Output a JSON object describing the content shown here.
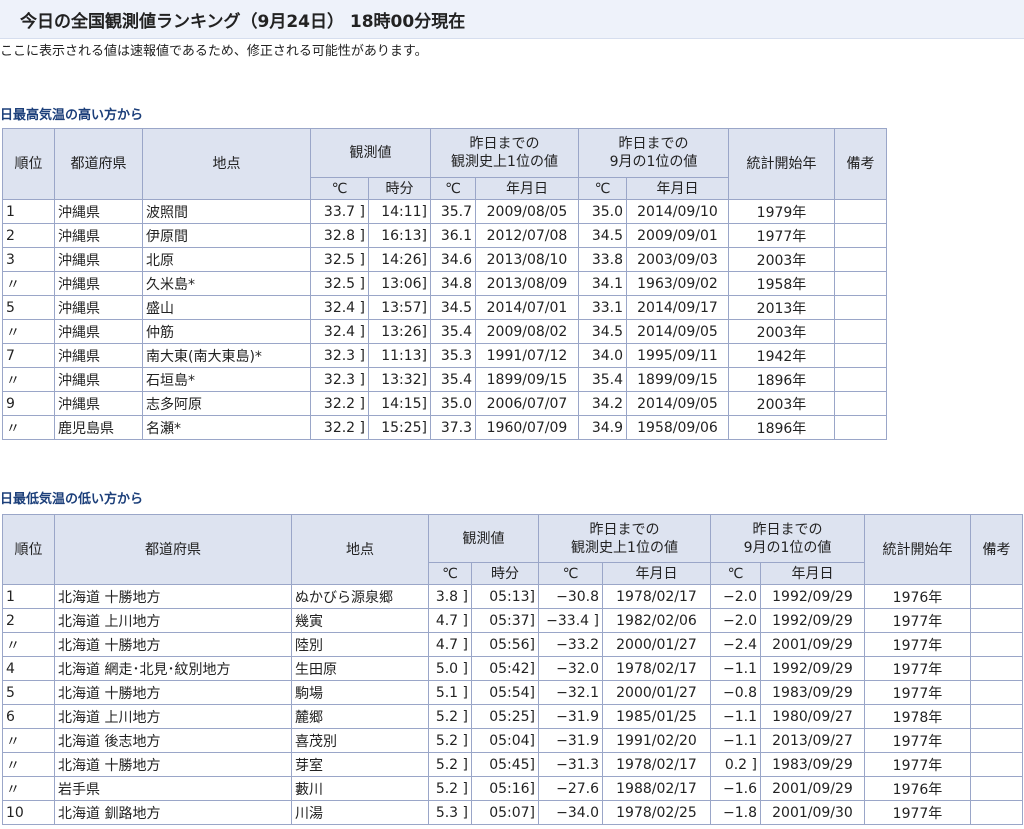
{
  "page": {
    "title": "今日の全国観測値ランキング（9月24日） 18時00分現在",
    "notice": "ここに表示される値は速報値であるため、修正される可能性があります。"
  },
  "header_labels": {
    "rank": "順位",
    "pref": "都道府県",
    "station": "地点",
    "observed": "観測値",
    "record_line1": "昨日までの",
    "record_line2": "観測史上1位の値",
    "sept_line1": "昨日までの",
    "sept_line2": "9月の1位の値",
    "start_year": "統計開始年",
    "remarks": "備考",
    "deg": "℃",
    "time": "時分",
    "date": "年月日"
  },
  "high_table": {
    "title": "日最高気温の高い方から",
    "rows": [
      {
        "rank": "1",
        "pref": "沖縄県",
        "station": "波照間",
        "value": "33.7 ]",
        "time": "14:11]",
        "rec_val": "35.7",
        "rec_date": "2009/08/05",
        "sep_val": "35.0",
        "sep_date": "2014/09/10",
        "start": "1979年",
        "note": ""
      },
      {
        "rank": "2",
        "pref": "沖縄県",
        "station": "伊原間",
        "value": "32.8 ]",
        "time": "16:13]",
        "rec_val": "36.1",
        "rec_date": "2012/07/08",
        "sep_val": "34.5",
        "sep_date": "2009/09/01",
        "start": "1977年",
        "note": ""
      },
      {
        "rank": "3",
        "pref": "沖縄県",
        "station": "北原",
        "value": "32.5 ]",
        "time": "14:26]",
        "rec_val": "34.6",
        "rec_date": "2013/08/10",
        "sep_val": "33.8",
        "sep_date": "2003/09/03",
        "start": "2003年",
        "note": ""
      },
      {
        "rank": "〃",
        "pref": "沖縄県",
        "station": "久米島*",
        "value": "32.5 ]",
        "time": "13:06]",
        "rec_val": "34.8",
        "rec_date": "2013/08/09",
        "sep_val": "34.1",
        "sep_date": "1963/09/02",
        "start": "1958年",
        "note": ""
      },
      {
        "rank": "5",
        "pref": "沖縄県",
        "station": "盛山",
        "value": "32.4 ]",
        "time": "13:57]",
        "rec_val": "34.5",
        "rec_date": "2014/07/01",
        "sep_val": "33.1",
        "sep_date": "2014/09/17",
        "start": "2013年",
        "note": ""
      },
      {
        "rank": "〃",
        "pref": "沖縄県",
        "station": "仲筋",
        "value": "32.4 ]",
        "time": "13:26]",
        "rec_val": "35.4",
        "rec_date": "2009/08/02",
        "sep_val": "34.5",
        "sep_date": "2014/09/05",
        "start": "2003年",
        "note": ""
      },
      {
        "rank": "7",
        "pref": "沖縄県",
        "station": "南大東(南大東島)*",
        "value": "32.3 ]",
        "time": "11:13]",
        "rec_val": "35.3",
        "rec_date": "1991/07/12",
        "sep_val": "34.0",
        "sep_date": "1995/09/11",
        "start": "1942年",
        "note": ""
      },
      {
        "rank": "〃",
        "pref": "沖縄県",
        "station": "石垣島*",
        "value": "32.3 ]",
        "time": "13:32]",
        "rec_val": "35.4",
        "rec_date": "1899/09/15",
        "sep_val": "35.4",
        "sep_date": "1899/09/15",
        "start": "1896年",
        "note": ""
      },
      {
        "rank": "9",
        "pref": "沖縄県",
        "station": "志多阿原",
        "value": "32.2 ]",
        "time": "14:15]",
        "rec_val": "35.0",
        "rec_date": "2006/07/07",
        "sep_val": "34.2",
        "sep_date": "2014/09/05",
        "start": "2003年",
        "note": ""
      },
      {
        "rank": "〃",
        "pref": "鹿児島県",
        "station": "名瀬*",
        "value": "32.2 ]",
        "time": "15:25]",
        "rec_val": "37.3",
        "rec_date": "1960/07/09",
        "sep_val": "34.9",
        "sep_date": "1958/09/06",
        "start": "1896年",
        "note": ""
      }
    ]
  },
  "low_table": {
    "title": "日最低気温の低い方から",
    "rows": [
      {
        "rank": "1",
        "pref": "北海道 十勝地方",
        "station": "ぬかびら源泉郷",
        "value": "3.8 ]",
        "time": "05:13]",
        "rec_val": "−30.8",
        "rec_date": "1978/02/17",
        "sep_val": "−2.0",
        "sep_date": "1992/09/29",
        "start": "1976年",
        "note": ""
      },
      {
        "rank": "2",
        "pref": "北海道 上川地方",
        "station": "幾寅",
        "value": "4.7 ]",
        "time": "05:37]",
        "rec_val": "−33.4 ]",
        "rec_date": "1982/02/06",
        "sep_val": "−2.0",
        "sep_date": "1992/09/29",
        "start": "1977年",
        "note": ""
      },
      {
        "rank": "〃",
        "pref": "北海道 十勝地方",
        "station": "陸別",
        "value": "4.7 ]",
        "time": "05:56]",
        "rec_val": "−33.2",
        "rec_date": "2000/01/27",
        "sep_val": "−2.4",
        "sep_date": "2001/09/29",
        "start": "1977年",
        "note": ""
      },
      {
        "rank": "4",
        "pref": "北海道 網走･北見･紋別地方",
        "station": "生田原",
        "value": "5.0 ]",
        "time": "05:42]",
        "rec_val": "−32.0",
        "rec_date": "1978/02/17",
        "sep_val": "−1.1",
        "sep_date": "1992/09/29",
        "start": "1977年",
        "note": ""
      },
      {
        "rank": "5",
        "pref": "北海道 十勝地方",
        "station": "駒場",
        "value": "5.1 ]",
        "time": "05:54]",
        "rec_val": "−32.1",
        "rec_date": "2000/01/27",
        "sep_val": "−0.8",
        "sep_date": "1983/09/29",
        "start": "1977年",
        "note": ""
      },
      {
        "rank": "6",
        "pref": "北海道 上川地方",
        "station": "麓郷",
        "value": "5.2 ]",
        "time": "05:25]",
        "rec_val": "−31.9",
        "rec_date": "1985/01/25",
        "sep_val": "−1.1",
        "sep_date": "1980/09/27",
        "start": "1978年",
        "note": ""
      },
      {
        "rank": "〃",
        "pref": "北海道 後志地方",
        "station": "喜茂別",
        "value": "5.2 ]",
        "time": "05:04]",
        "rec_val": "−31.9",
        "rec_date": "1991/02/20",
        "sep_val": "−1.1",
        "sep_date": "2013/09/27",
        "start": "1977年",
        "note": ""
      },
      {
        "rank": "〃",
        "pref": "北海道 十勝地方",
        "station": "芽室",
        "value": "5.2 ]",
        "time": "05:45]",
        "rec_val": "−31.3",
        "rec_date": "1978/02/17",
        "sep_val": "0.2 ]",
        "sep_date": "1983/09/29",
        "start": "1977年",
        "note": ""
      },
      {
        "rank": "〃",
        "pref": "岩手県",
        "station": "藪川",
        "value": "5.2 ]",
        "time": "05:16]",
        "rec_val": "−27.6",
        "rec_date": "1988/02/17",
        "sep_val": "−1.6",
        "sep_date": "2001/09/29",
        "start": "1976年",
        "note": ""
      },
      {
        "rank": "10",
        "pref": "北海道 釧路地方",
        "station": "川湯",
        "value": "5.3 ]",
        "time": "05:07]",
        "rec_val": "−34.0",
        "rec_date": "1978/02/25",
        "sep_val": "−1.8",
        "sep_date": "2001/09/30",
        "start": "1977年",
        "note": ""
      }
    ]
  }
}
